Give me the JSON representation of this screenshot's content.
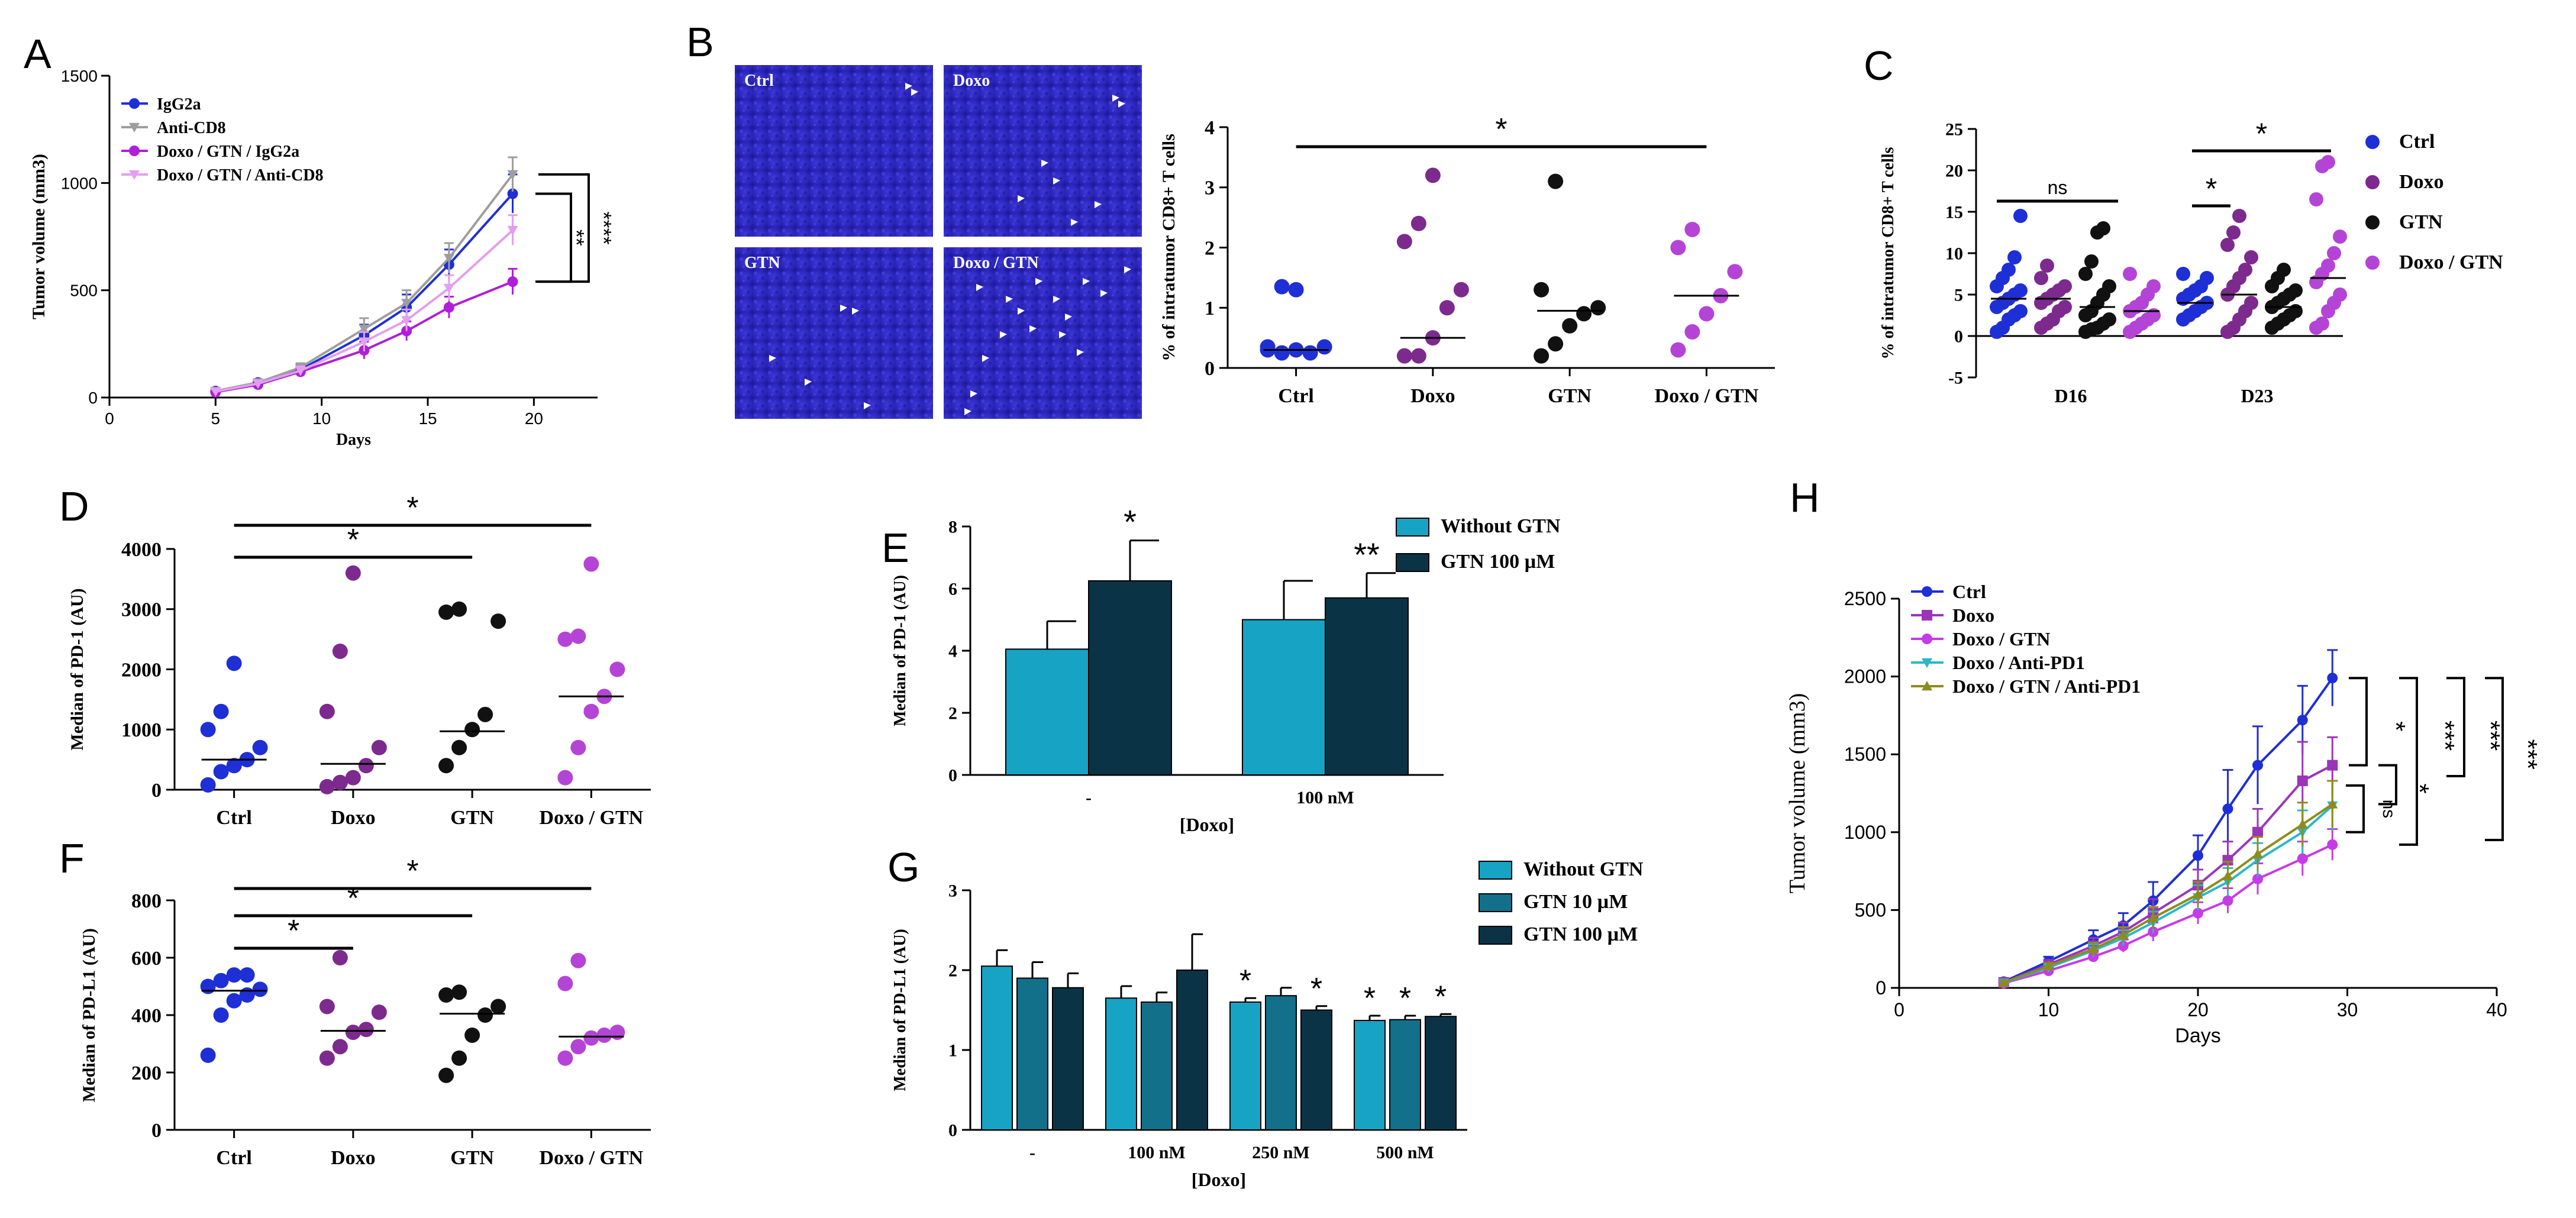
{
  "colors": {
    "ctrl": "#1f2fd6",
    "doxo": "#7d2a8e",
    "gtn": "#111111",
    "doxo_gtn": "#b444d6",
    "igg2a": "#1f2fd6",
    "anti_cd8": "#9e9e9e",
    "doxo_gtn_igg2a": "#b01ed8",
    "doxo_gtn_anti_cd8": "#e39ef0",
    "without_gtn": "#17a3c4",
    "gtn_10": "#13708a",
    "gtn_100": "#0b3346",
    "doxo_antipd1": "#2ab8c8",
    "doxo_gtn_antipd1": "#8c8c1e",
    "h_doxo": "#9b35b8",
    "h_doxo_gtn": "#c63be6",
    "line": "#000000"
  },
  "panels": {
    "A": "A",
    "B": "B",
    "C": "C",
    "D": "D",
    "E": "E",
    "F": "F",
    "G": "G",
    "H": "H"
  },
  "micro_labels": [
    "Ctrl",
    "Doxo",
    "GTN",
    "Doxo / GTN"
  ],
  "chart_data": [
    {
      "panel": "A",
      "type": "line",
      "xlabel": "Days",
      "ylabel": "Tumor volume (mm3)",
      "xlim": [
        0,
        23
      ],
      "ylim": [
        0,
        1500
      ],
      "xticks": [
        0,
        5,
        10,
        15,
        20
      ],
      "yticks": [
        0,
        500,
        1000,
        1500
      ],
      "legend_position": "top-left",
      "x": [
        5,
        7,
        9,
        12,
        14,
        16,
        19
      ],
      "series": [
        {
          "name": "IgG2a",
          "values": [
            30,
            70,
            130,
            290,
            420,
            620,
            950
          ],
          "err": [
            10,
            15,
            20,
            50,
            60,
            70,
            90
          ],
          "marker": "circle",
          "color": "#1f2fd6"
        },
        {
          "name": "Anti-CD8",
          "values": [
            30,
            70,
            140,
            320,
            440,
            650,
            1040
          ],
          "err": [
            10,
            15,
            20,
            50,
            60,
            70,
            80
          ],
          "marker": "triangle-down",
          "color": "#9e9e9e"
        },
        {
          "name": "Doxo / GTN / IgG2a",
          "values": [
            25,
            60,
            120,
            220,
            310,
            420,
            540
          ],
          "err": [
            10,
            15,
            20,
            40,
            45,
            50,
            60
          ],
          "marker": "circle",
          "color": "#b01ed8"
        },
        {
          "name": "Doxo / GTN / Anti-CD8",
          "values": [
            28,
            65,
            125,
            260,
            360,
            510,
            780
          ],
          "err": [
            10,
            15,
            20,
            45,
            50,
            60,
            70
          ],
          "marker": "triangle-down",
          "color": "#e39ef0"
        }
      ],
      "annotations": [
        "**",
        "****"
      ]
    },
    {
      "panel": "B",
      "type": "scatter",
      "ylabel": "% of intratumor CD8+ T cells",
      "categories": [
        "Ctrl",
        "Doxo",
        "GTN",
        "Doxo / GTN"
      ],
      "ylim": [
        0,
        4
      ],
      "yticks": [
        0,
        1,
        2,
        3,
        4
      ],
      "points": [
        [
          0.3,
          0.25,
          0.3,
          0.25,
          0.35,
          0.35,
          1.35,
          1.3
        ],
        [
          0.2,
          0.2,
          0.5,
          1.0,
          1.3,
          2.1,
          2.4,
          3.2
        ],
        [
          0.2,
          0.4,
          0.7,
          0.9,
          1.0,
          1.3,
          3.1
        ],
        [
          0.3,
          0.6,
          0.9,
          1.2,
          1.6,
          2.0,
          2.3
        ]
      ],
      "medians": [
        0.3,
        0.5,
        0.95,
        1.2
      ],
      "annotations": [
        "*"
      ]
    },
    {
      "panel": "C",
      "type": "scatter",
      "ylabel": "% of intratumor CD8+ T cells",
      "categories": [
        "D16",
        "D23"
      ],
      "series_names": [
        "Ctrl",
        "Doxo",
        "GTN",
        "Doxo / GTN"
      ],
      "ylim": [
        -5,
        25
      ],
      "yticks": [
        -5,
        0,
        5,
        10,
        15,
        20,
        25
      ],
      "legend_position": "right",
      "points": {
        "D16": [
          [
            0.5,
            1,
            2,
            2.5,
            3,
            3.5,
            4,
            4.5,
            5,
            5.5,
            6,
            7,
            8,
            9.5,
            14.5
          ],
          [
            1,
            1.5,
            2,
            3,
            3.5,
            4,
            4.5,
            5,
            5.5,
            6,
            7,
            8.5
          ],
          [
            0.5,
            0.8,
            1,
            1.5,
            2,
            2.5,
            3,
            4,
            5,
            6,
            7.5,
            9,
            12.5,
            13
          ],
          [
            0.5,
            1,
            1.5,
            2,
            2.5,
            3,
            3.5,
            4,
            5,
            6,
            7.5
          ]
        ],
        "D23": [
          [
            2,
            2.5,
            3,
            3.5,
            4,
            4.5,
            5,
            5.5,
            6,
            7,
            7.5
          ],
          [
            0.5,
            1,
            2,
            3,
            4,
            5,
            6,
            7,
            8,
            9.5,
            11,
            12.5,
            14.5
          ],
          [
            1,
            1.5,
            2,
            2.5,
            3,
            3.5,
            4,
            4.5,
            5,
            5.5,
            6,
            7,
            8
          ],
          [
            1,
            1.5,
            3,
            4,
            5,
            6.5,
            7.5,
            8.5,
            10,
            12,
            16.5,
            20.5,
            21
          ]
        ]
      },
      "medians": {
        "D16": [
          4.5,
          4.5,
          3.5,
          3
        ],
        "D23": [
          4,
          5,
          3.5,
          7
        ]
      },
      "annotations": [
        "ns",
        "*",
        "*"
      ]
    },
    {
      "panel": "D",
      "type": "scatter",
      "ylabel": "Median of PD-1 (AU)",
      "categories": [
        "Ctrl",
        "Doxo",
        "GTN",
        "Doxo / GTN"
      ],
      "ylim": [
        0,
        4000
      ],
      "yticks": [
        0,
        1000,
        2000,
        3000,
        4000
      ],
      "points": [
        [
          80,
          300,
          400,
          500,
          700,
          1000,
          1300,
          2100
        ],
        [
          50,
          120,
          200,
          400,
          700,
          1300,
          2300,
          3600
        ],
        [
          400,
          700,
          1000,
          1250,
          2800,
          2950,
          3000
        ],
        [
          200,
          700,
          1300,
          1550,
          2000,
          2500,
          2550,
          3750
        ]
      ],
      "medians": [
        500,
        430,
        970,
        1550
      ],
      "annotations": [
        "*",
        "*"
      ]
    },
    {
      "panel": "E",
      "type": "bar",
      "xlabel": "[Doxo]",
      "ylabel": "Median of PD-1 (AU)",
      "categories": [
        "-",
        "100 nM"
      ],
      "ylim": [
        0,
        8
      ],
      "yticks": [
        0,
        2,
        4,
        6,
        8
      ],
      "legend_position": "top-right",
      "series": [
        {
          "name": "Without GTN",
          "values": [
            4.05,
            5.0
          ],
          "err": [
            0.9,
            1.25
          ],
          "color": "#17a3c4"
        },
        {
          "name": "GTN 100 µM",
          "values": [
            6.25,
            5.7
          ],
          "err": [
            1.3,
            0.8
          ],
          "color": "#0b3346"
        }
      ],
      "annotations": [
        "*",
        "**"
      ]
    },
    {
      "panel": "F",
      "type": "scatter",
      "ylabel": "Median of PD-L1 (AU)",
      "categories": [
        "Ctrl",
        "Doxo",
        "GTN",
        "Doxo / GTN"
      ],
      "ylim": [
        0,
        800
      ],
      "yticks": [
        0,
        200,
        400,
        600,
        800
      ],
      "points": [
        [
          260,
          400,
          450,
          470,
          490,
          500,
          520,
          540,
          540
        ],
        [
          250,
          290,
          340,
          350,
          410,
          430,
          600
        ],
        [
          190,
          250,
          330,
          400,
          430,
          470,
          480
        ],
        [
          250,
          290,
          320,
          330,
          340,
          510,
          590
        ]
      ],
      "medians": [
        485,
        345,
        405,
        325
      ],
      "annotations": [
        "*",
        "*",
        "*"
      ]
    },
    {
      "panel": "G",
      "type": "bar",
      "xlabel": "[Doxo]",
      "ylabel": "Median of PD-L1 (AU)",
      "categories": [
        "-",
        "100 nM",
        "250 nM",
        "500 nM"
      ],
      "ylim": [
        0,
        3
      ],
      "yticks": [
        0,
        1,
        2,
        3
      ],
      "legend_position": "top-right",
      "series": [
        {
          "name": "Without GTN",
          "values": [
            2.05,
            1.65,
            1.6,
            1.37
          ],
          "err": [
            0.2,
            0.15,
            0.05,
            0.06
          ],
          "color": "#17a3c4"
        },
        {
          "name": "GTN 10 µM",
          "values": [
            1.9,
            1.6,
            1.68,
            1.38
          ],
          "err": [
            0.2,
            0.12,
            0.1,
            0.05
          ],
          "color": "#13708a"
        },
        {
          "name": "GTN 100 µM",
          "values": [
            1.78,
            2.0,
            1.5,
            1.42
          ],
          "err": [
            0.18,
            0.45,
            0.05,
            0.03
          ],
          "color": "#0b3346"
        }
      ],
      "annotations": [
        "*",
        "*",
        "*",
        "*",
        "*"
      ]
    },
    {
      "panel": "H",
      "type": "line",
      "xlabel": "Days",
      "ylabel": "Tumor volume (mm3)",
      "xlim": [
        0,
        40
      ],
      "ylim": [
        0,
        2500
      ],
      "xticks": [
        0,
        10,
        20,
        30,
        40
      ],
      "yticks": [
        0,
        500,
        1000,
        1500,
        2000,
        2500
      ],
      "legend_position": "top-left",
      "x": [
        7,
        10,
        13,
        15,
        17,
        20,
        22,
        24,
        27,
        29
      ],
      "series": [
        {
          "name": "Ctrl",
          "values": [
            40,
            170,
            310,
            400,
            560,
            850,
            1150,
            1430,
            1720,
            1990
          ],
          "err": [
            10,
            30,
            60,
            80,
            120,
            130,
            250,
            250,
            220,
            180
          ],
          "marker": "circle",
          "color": "#1f2fd6"
        },
        {
          "name": "Doxo",
          "values": [
            35,
            150,
            270,
            360,
            480,
            660,
            820,
            1000,
            1330,
            1430
          ],
          "err": [
            10,
            25,
            50,
            60,
            90,
            100,
            120,
            150,
            250,
            180
          ],
          "marker": "square",
          "color": "#9b35b8"
        },
        {
          "name": "Doxo / GTN",
          "values": [
            30,
            110,
            200,
            270,
            360,
            480,
            560,
            700,
            830,
            920
          ],
          "err": [
            10,
            20,
            30,
            40,
            60,
            70,
            80,
            100,
            110,
            100
          ],
          "marker": "circle",
          "color": "#c63be6"
        },
        {
          "name": "Doxo / Anti-PD1",
          "values": [
            32,
            130,
            240,
            320,
            420,
            580,
            680,
            820,
            1000,
            1170
          ],
          "err": [
            10,
            20,
            40,
            50,
            70,
            80,
            90,
            110,
            140,
            160
          ],
          "marker": "triangle-down",
          "color": "#2ab8c8"
        },
        {
          "name": "Doxo / GTN / Anti-PD1",
          "values": [
            34,
            140,
            250,
            340,
            450,
            600,
            720,
            860,
            1050,
            1180
          ],
          "err": [
            10,
            20,
            40,
            50,
            70,
            80,
            90,
            110,
            140,
            150
          ],
          "marker": "triangle-up",
          "color": "#8c8c1e"
        }
      ],
      "annotations": [
        "*",
        "*",
        "***",
        "***",
        "***",
        "ns"
      ]
    }
  ]
}
